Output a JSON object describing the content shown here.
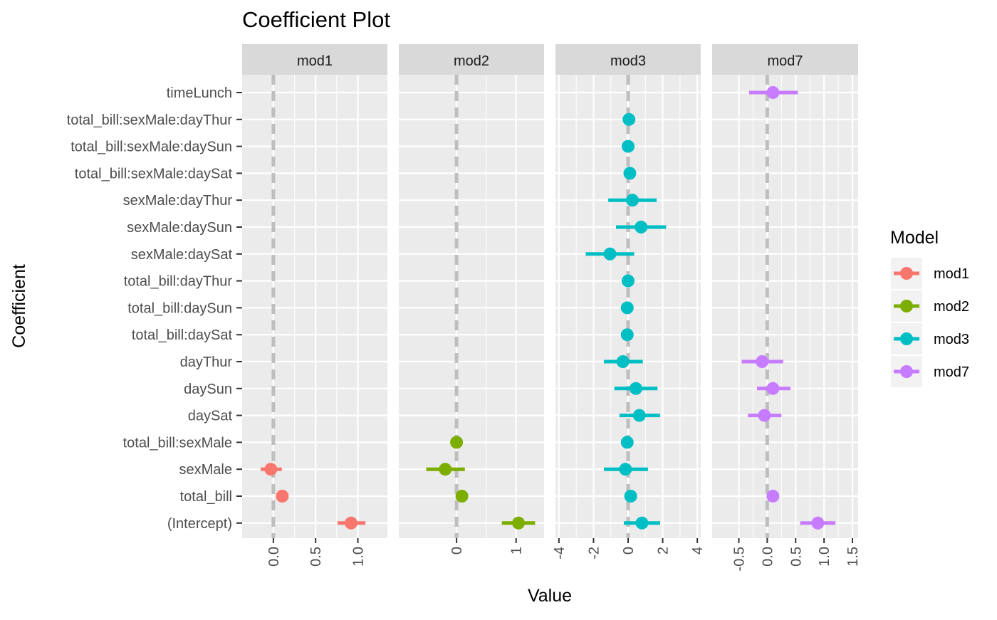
{
  "chart_data": {
    "type": "coefficient-plot",
    "title": "Coefficient Plot",
    "xlabel": "Value",
    "ylabel": "Coefficient",
    "grid": true,
    "legend": {
      "title": "Model",
      "placement": "right",
      "entries": [
        {
          "name": "mod1",
          "color": "#F8766D"
        },
        {
          "name": "mod2",
          "color": "#7CAE00"
        },
        {
          "name": "mod3",
          "color": "#00BFC4"
        },
        {
          "name": "mod7",
          "color": "#C77CFF"
        }
      ]
    },
    "coefficients": [
      "timeLunch",
      "total_bill:sexMale:dayThur",
      "total_bill:sexMale:daySun",
      "total_bill:sexMale:daySat",
      "sexMale:dayThur",
      "sexMale:daySun",
      "sexMale:daySat",
      "total_bill:dayThur",
      "total_bill:daySun",
      "total_bill:daySat",
      "dayThur",
      "daySun",
      "daySat",
      "total_bill:sexMale",
      "sexMale",
      "total_bill",
      "(Intercept)"
    ],
    "panels": [
      {
        "name": "mod1",
        "xlim": [
          -0.37,
          1.35
        ],
        "ticks": [
          0.0,
          0.5,
          1.0
        ],
        "tick_labels": [
          "0.0",
          "0.5",
          "1.0"
        ],
        "points": [
          {
            "coef": "sexMale",
            "value": -0.03,
            "low": -0.15,
            "high": 0.1
          },
          {
            "coef": "total_bill",
            "value": 0.105,
            "low": 0.09,
            "high": 0.12
          },
          {
            "coef": "(Intercept)",
            "value": 0.92,
            "low": 0.76,
            "high": 1.09
          }
        ]
      },
      {
        "name": "mod2",
        "xlim": [
          -0.97,
          1.47
        ],
        "ticks": [
          0,
          1
        ],
        "tick_labels": [
          "0",
          "1"
        ],
        "points": [
          {
            "coef": "total_bill:sexMale",
            "value": 0.0,
            "low": -0.02,
            "high": 0.02
          },
          {
            "coef": "sexMale",
            "value": -0.19,
            "low": -0.51,
            "high": 0.14
          },
          {
            "coef": "total_bill",
            "value": 0.09,
            "low": 0.06,
            "high": 0.12
          },
          {
            "coef": "(Intercept)",
            "value": 1.04,
            "low": 0.76,
            "high": 1.32
          }
        ]
      },
      {
        "name": "mod3",
        "xlim": [
          -4.2,
          4.2
        ],
        "ticks": [
          -4,
          -2,
          0,
          2,
          4
        ],
        "tick_labels": [
          "-4",
          "-2",
          "0",
          "2",
          "4"
        ],
        "points": [
          {
            "coef": "total_bill:sexMale:dayThur",
            "value": 0.05,
            "low": -0.05,
            "high": 0.15
          },
          {
            "coef": "total_bill:sexMale:daySun",
            "value": 0.0,
            "low": -0.1,
            "high": 0.1
          },
          {
            "coef": "total_bill:sexMale:daySat",
            "value": 0.1,
            "low": 0.0,
            "high": 0.2
          },
          {
            "coef": "sexMale:dayThur",
            "value": 0.25,
            "low": -1.15,
            "high": 1.65
          },
          {
            "coef": "sexMale:daySun",
            "value": 0.75,
            "low": -0.7,
            "high": 2.2
          },
          {
            "coef": "sexMale:daySat",
            "value": -1.05,
            "low": -2.45,
            "high": 0.35
          },
          {
            "coef": "total_bill:dayThur",
            "value": 0.0,
            "low": -0.1,
            "high": 0.1
          },
          {
            "coef": "total_bill:daySun",
            "value": -0.05,
            "low": -0.15,
            "high": 0.05
          },
          {
            "coef": "total_bill:daySat",
            "value": -0.05,
            "low": -0.15,
            "high": 0.05
          },
          {
            "coef": "dayThur",
            "value": -0.3,
            "low": -1.4,
            "high": 0.85
          },
          {
            "coef": "daySun",
            "value": 0.45,
            "low": -0.8,
            "high": 1.7
          },
          {
            "coef": "daySat",
            "value": 0.65,
            "low": -0.5,
            "high": 1.85
          },
          {
            "coef": "total_bill:sexMale",
            "value": -0.05,
            "low": -0.15,
            "high": 0.05
          },
          {
            "coef": "sexMale",
            "value": -0.15,
            "low": -1.4,
            "high": 1.15
          },
          {
            "coef": "total_bill",
            "value": 0.15,
            "low": 0.05,
            "high": 0.25
          },
          {
            "coef": "(Intercept)",
            "value": 0.8,
            "low": -0.25,
            "high": 1.85
          }
        ]
      },
      {
        "name": "mod7",
        "xlim": [
          -0.97,
          1.6
        ],
        "ticks": [
          -0.5,
          0.0,
          0.5,
          1.0,
          1.5
        ],
        "tick_labels": [
          "-0.5",
          "0.0",
          "0.5",
          "1.0",
          "1.5"
        ],
        "points": [
          {
            "coef": "timeLunch",
            "value": 0.1,
            "low": -0.32,
            "high": 0.54
          },
          {
            "coef": "dayThur",
            "value": -0.09,
            "low": -0.45,
            "high": 0.28
          },
          {
            "coef": "daySun",
            "value": 0.1,
            "low": -0.18,
            "high": 0.41
          },
          {
            "coef": "daySat",
            "value": -0.05,
            "low": -0.34,
            "high": 0.25
          },
          {
            "coef": "total_bill",
            "value": 0.1,
            "low": 0.08,
            "high": 0.12
          },
          {
            "coef": "(Intercept)",
            "value": 0.89,
            "low": 0.58,
            "high": 1.2
          }
        ]
      }
    ]
  }
}
